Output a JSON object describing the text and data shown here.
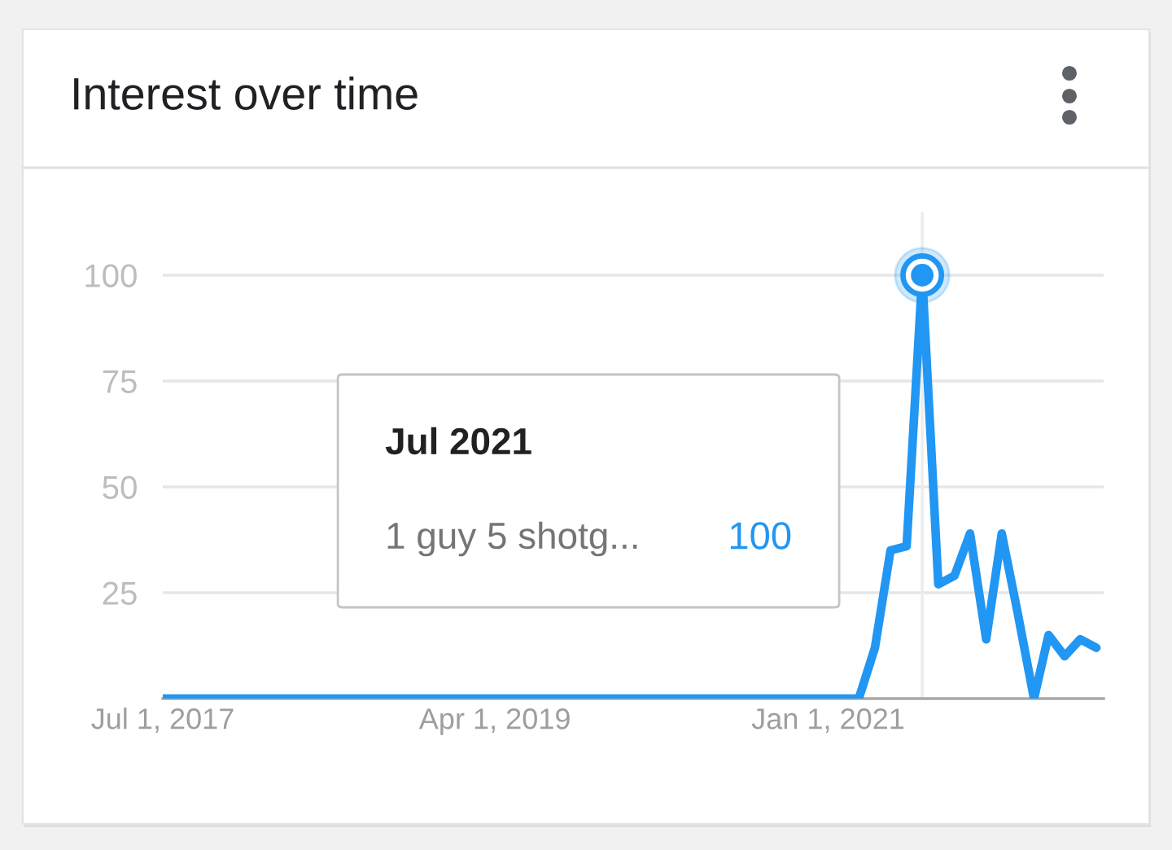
{
  "chart_data": {
    "type": "line",
    "title": "Interest over time",
    "x": [
      "2017-07",
      "2017-08",
      "2017-09",
      "2017-10",
      "2017-11",
      "2017-12",
      "2018-01",
      "2018-02",
      "2018-03",
      "2018-04",
      "2018-05",
      "2018-06",
      "2018-07",
      "2018-08",
      "2018-09",
      "2018-10",
      "2018-11",
      "2018-12",
      "2019-01",
      "2019-02",
      "2019-03",
      "2019-04",
      "2019-05",
      "2019-06",
      "2019-07",
      "2019-08",
      "2019-09",
      "2019-10",
      "2019-11",
      "2019-12",
      "2020-01",
      "2020-02",
      "2020-03",
      "2020-04",
      "2020-05",
      "2020-06",
      "2020-07",
      "2020-08",
      "2020-09",
      "2020-10",
      "2020-11",
      "2020-12",
      "2021-01",
      "2021-02",
      "2021-03",
      "2021-04",
      "2021-05",
      "2021-06",
      "2021-07",
      "2021-08",
      "2021-09",
      "2021-10",
      "2021-11",
      "2021-12",
      "2022-01",
      "2022-02",
      "2022-03",
      "2022-04",
      "2022-05",
      "2022-06"
    ],
    "series": [
      {
        "color": "#2196f3",
        "values": [
          0,
          0,
          0,
          0,
          0,
          0,
          0,
          0,
          0,
          0,
          0,
          0,
          0,
          0,
          0,
          0,
          0,
          0,
          0,
          0,
          0,
          0,
          0,
          0,
          0,
          0,
          0,
          0,
          0,
          0,
          0,
          0,
          0,
          0,
          0,
          0,
          0,
          0,
          0,
          0,
          0,
          0,
          0,
          0,
          0,
          12,
          35,
          36,
          100,
          27,
          29,
          39,
          14,
          39,
          20,
          0,
          15,
          10,
          14,
          12
        ]
      }
    ],
    "xlim": [
      "2017-07-01",
      "2022-06-15"
    ],
    "xticks": [
      {
        "value": "2017-07-01",
        "label": "Jul 1, 2017"
      },
      {
        "value": "2019-04-01",
        "label": "Apr 1, 2019"
      },
      {
        "value": "2021-01-01",
        "label": "Jan 1, 2021"
      }
    ],
    "ylim": [
      0,
      115
    ],
    "yticks": [
      25,
      50,
      75,
      100
    ],
    "grid": "y",
    "ref_lines": [
      {
        "axis": "x",
        "value": "2021-07",
        "color": "#ececec"
      }
    ],
    "annotations": [
      "Jul 2021",
      "1 guy 5 shotg...",
      "100"
    ]
  }
}
